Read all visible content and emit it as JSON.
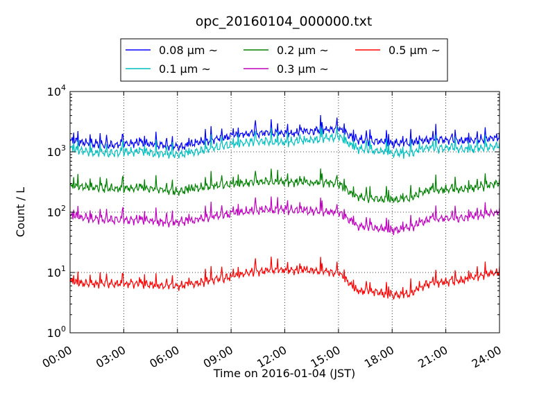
{
  "chart_data": {
    "type": "line",
    "title": "opc_20160104_000000.txt",
    "xlabel": "Time on 2016-01-04 (JST)",
    "ylabel": "Count / L",
    "xlim": [
      "00:00",
      "24:00"
    ],
    "ylim": [
      1,
      10000
    ],
    "yscale": "log",
    "grid": true,
    "legend_position": "top-outside",
    "x_ticks": [
      "00:00",
      "03:00",
      "06:00",
      "09:00",
      "12:00",
      "15:00",
      "18:00",
      "21:00",
      "24:00"
    ],
    "y_ticks": [
      {
        "base": "10",
        "exp": "0",
        "value": 1
      },
      {
        "base": "10",
        "exp": "1",
        "value": 10
      },
      {
        "base": "10",
        "exp": "2",
        "value": 100
      },
      {
        "base": "10",
        "exp": "3",
        "value": 1000
      },
      {
        "base": "10",
        "exp": "4",
        "value": 10000
      }
    ],
    "x": [
      "00:00",
      "01:00",
      "02:00",
      "03:00",
      "04:00",
      "05:00",
      "06:00",
      "07:00",
      "08:00",
      "09:00",
      "10:00",
      "11:00",
      "12:00",
      "13:00",
      "14:00",
      "15:00",
      "16:00",
      "17:00",
      "18:00",
      "19:00",
      "20:00",
      "21:00",
      "22:00",
      "23:00",
      "24:00"
    ],
    "series": [
      {
        "name": "0.08 μm ~",
        "color": "#0000ff",
        "values": [
          1500,
          1400,
          1300,
          1350,
          1400,
          1300,
          1200,
          1400,
          1600,
          1800,
          2000,
          2100,
          2000,
          2100,
          2300,
          2500,
          1600,
          1500,
          1400,
          1400,
          1600,
          1600,
          1500,
          1600,
          1700
        ]
      },
      {
        "name": "0.1 μm ~",
        "color": "#00bfbf",
        "values": [
          1100,
          1000,
          950,
          1000,
          1000,
          950,
          900,
          1000,
          1150,
          1300,
          1450,
          1500,
          1450,
          1500,
          1650,
          1800,
          1150,
          1050,
          950,
          950,
          1150,
          1150,
          1100,
          1150,
          1250
        ]
      },
      {
        "name": "0.2 μm ~",
        "color": "#008000",
        "values": [
          270,
          260,
          250,
          250,
          250,
          240,
          220,
          250,
          270,
          290,
          310,
          320,
          320,
          310,
          310,
          300,
          180,
          170,
          160,
          170,
          230,
          240,
          240,
          270,
          300
        ]
      },
      {
        "name": "0.3 μm ~",
        "color": "#bf00bf",
        "values": [
          85,
          80,
          75,
          75,
          75,
          70,
          68,
          75,
          85,
          95,
          105,
          110,
          110,
          105,
          105,
          100,
          60,
          55,
          50,
          55,
          75,
          80,
          80,
          90,
          100
        ]
      },
      {
        "name": "0.5 μm ~",
        "color": "#ff0000",
        "values": [
          7,
          6.5,
          6.5,
          6.5,
          6.5,
          6,
          6,
          6.5,
          7.5,
          8.5,
          10,
          11,
          11,
          11,
          10.5,
          10,
          5,
          4.8,
          4.2,
          4.5,
          6.5,
          7,
          7.5,
          9,
          10
        ]
      }
    ]
  }
}
